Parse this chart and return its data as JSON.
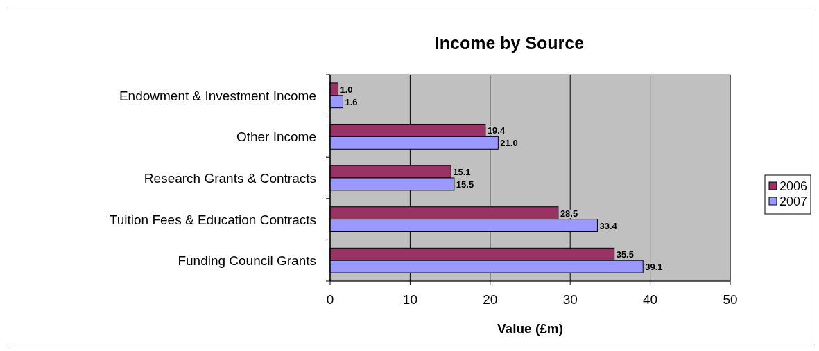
{
  "chart_data": {
    "type": "bar",
    "orientation": "horizontal",
    "title": "Income by Source",
    "xlabel": "Value (£m)",
    "categories": [
      "Endowment & Investment Income",
      "Other Income",
      "Research Grants & Contracts",
      "Tuition Fees & Education Contracts",
      "Funding Council Grants"
    ],
    "series": [
      {
        "name": "2006",
        "color": "#993366",
        "values": [
          1.0,
          19.4,
          15.1,
          28.5,
          35.5
        ],
        "value_labels": [
          "1.0",
          "19.4",
          "15.1",
          "28.5",
          "35.5"
        ]
      },
      {
        "name": "2007",
        "color": "#9999ff",
        "values": [
          1.6,
          21.0,
          15.5,
          33.4,
          39.1
        ],
        "value_labels": [
          "1.6",
          "21.0",
          "15.5",
          "33.4",
          "39.1"
        ]
      }
    ],
    "xlim": [
      0,
      50
    ],
    "xticks": [
      0,
      10,
      20,
      30,
      40,
      50
    ],
    "grid": "x",
    "legend": "right"
  }
}
